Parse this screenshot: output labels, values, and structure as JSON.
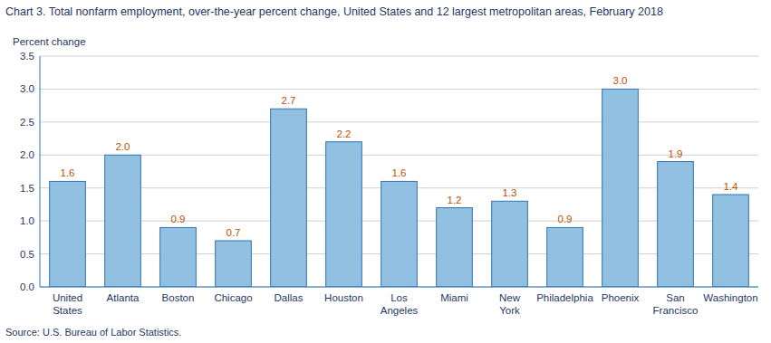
{
  "chart_data": {
    "type": "bar",
    "title": "Chart 3. Total nonfarm employment, over-the-year percent change, United States and 12 largest metropolitan areas, February 2018",
    "ylabel": "Percent change",
    "source": "Source: U.S. Bureau of Labor Statistics.",
    "categories": [
      "United\nStates",
      "Atlanta",
      "Boston",
      "Chicago",
      "Dallas",
      "Houston",
      "Los\nAngeles",
      "Miami",
      "New\nYork",
      "Philadelphia",
      "Phoenix",
      "San\nFrancisco",
      "Washington"
    ],
    "values": [
      1.6,
      2.0,
      0.9,
      0.7,
      2.7,
      2.2,
      1.6,
      1.2,
      1.3,
      0.9,
      3.0,
      1.9,
      1.4
    ],
    "value_labels": [
      "1.6",
      "2.0",
      "0.9",
      "0.7",
      "2.7",
      "2.2",
      "1.6",
      "1.2",
      "1.3",
      "0.9",
      "3.0",
      "1.9",
      "1.4"
    ],
    "data_labels": true,
    "color": "#92c0e0",
    "ylim": [
      0,
      3.5
    ],
    "yticks": [
      {
        "value": 0,
        "label": "0.0"
      },
      0.5,
      {
        "value": 1,
        "label": "1.0"
      },
      1.5,
      {
        "value": 2,
        "label": "2.0"
      },
      2.5,
      {
        "value": 3,
        "label": "3.0"
      },
      3.5
    ],
    "grid": true
  }
}
